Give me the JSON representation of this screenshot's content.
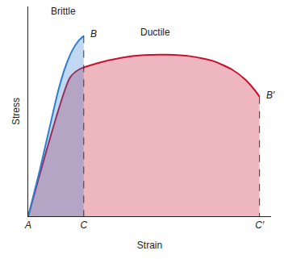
{
  "chart_data": {
    "type": "line",
    "x_label": "Strain",
    "y_label": "Stress",
    "xlim": [
      0,
      105
    ],
    "ylim": [
      0,
      100
    ],
    "xticks": [
      {
        "value": 0,
        "label": "A"
      },
      {
        "value": 24,
        "label": "C"
      },
      {
        "value": 100,
        "label": "C′"
      }
    ],
    "tick_labels": "x",
    "grid": false,
    "series": [
      {
        "name": "Ductile",
        "color": "#c8102e",
        "x": [
          0,
          18,
          22,
          30,
          40,
          50,
          60,
          70,
          80,
          88,
          94,
          98,
          100
        ],
        "values": [
          0,
          66,
          70,
          73,
          75.5,
          76.8,
          77,
          76.3,
          74,
          70,
          65,
          60,
          57
        ]
      },
      {
        "name": "Brittle",
        "color": "#2f7fd0",
        "x": [
          0,
          5,
          10,
          13,
          16,
          19,
          22,
          24
        ],
        "values": [
          0,
          22,
          46,
          60,
          71,
          79,
          84,
          86
        ]
      }
    ],
    "annotations": [
      {
        "text": "B",
        "x": 24,
        "y": 86
      },
      {
        "text": "B′",
        "x": 100,
        "y": 57
      }
    ]
  }
}
